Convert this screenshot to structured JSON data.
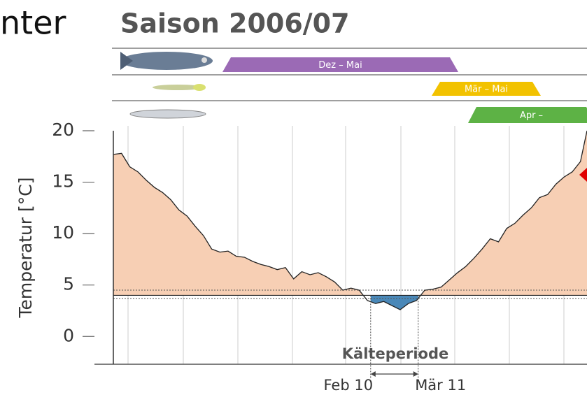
{
  "chart_data": {
    "type": "area",
    "heading_fragment": "nter",
    "title": "Saison 2006/07",
    "ylabel": "Temperatur [°C]",
    "annotation": "Kälteperiode",
    "spawning_bars": [
      {
        "label": "Dez – Mai",
        "color": "#9b6ab5"
      },
      {
        "label": "Mär – Mai",
        "color": "#f2c200"
      },
      {
        "label": "Apr –",
        "color": "#5db245"
      }
    ],
    "x": [
      0,
      5,
      10,
      15,
      20,
      25,
      30,
      35,
      40,
      45,
      50,
      55,
      60,
      65,
      70,
      75,
      80,
      85,
      90,
      95,
      100,
      105,
      110,
      115,
      120,
      125,
      130,
      135,
      140,
      145,
      150,
      155,
      160,
      165,
      170,
      175,
      180,
      185,
      190,
      195,
      200,
      205,
      210,
      215,
      220,
      225,
      230,
      235,
      240,
      245,
      250,
      255,
      260,
      265,
      270,
      275,
      280,
      285,
      289
    ],
    "series": [
      {
        "name": "Temperatur",
        "color": "#222222",
        "fill": "#f7cfb4",
        "cold_fill": "#4a88b8",
        "values": [
          17.7,
          17.8,
          16.5,
          16,
          15.2,
          14.5,
          14,
          13.3,
          12.3,
          11.7,
          10.7,
          9.8,
          8.5,
          8.2,
          8.3,
          7.8,
          7.7,
          7.3,
          7,
          6.8,
          6.5,
          6.7,
          5.6,
          6.3,
          6,
          6.2,
          5.8,
          5.3,
          4.5,
          4.7,
          4.5,
          3.5,
          3.2,
          3.4,
          3.0,
          2.6,
          3.2,
          3.5,
          4.5,
          4.6,
          4.8,
          5.5,
          6.2,
          6.8,
          7.6,
          8.5,
          9.5,
          9.2,
          10.5,
          11,
          11.8,
          12.5,
          13.5,
          13.8,
          14.8,
          15.5,
          16,
          17,
          20
        ]
      }
    ],
    "xlim": [
      0,
      289
    ],
    "xticks": [
      {
        "value": 157,
        "label": "Feb 10"
      },
      {
        "value": 186,
        "label": "Mär 11"
      }
    ],
    "ylim": [
      -2.7,
      20
    ],
    "yticks": [
      0,
      5,
      10,
      15,
      20
    ],
    "threshold": 4,
    "reference_lines": [
      4.5,
      3.7
    ]
  }
}
